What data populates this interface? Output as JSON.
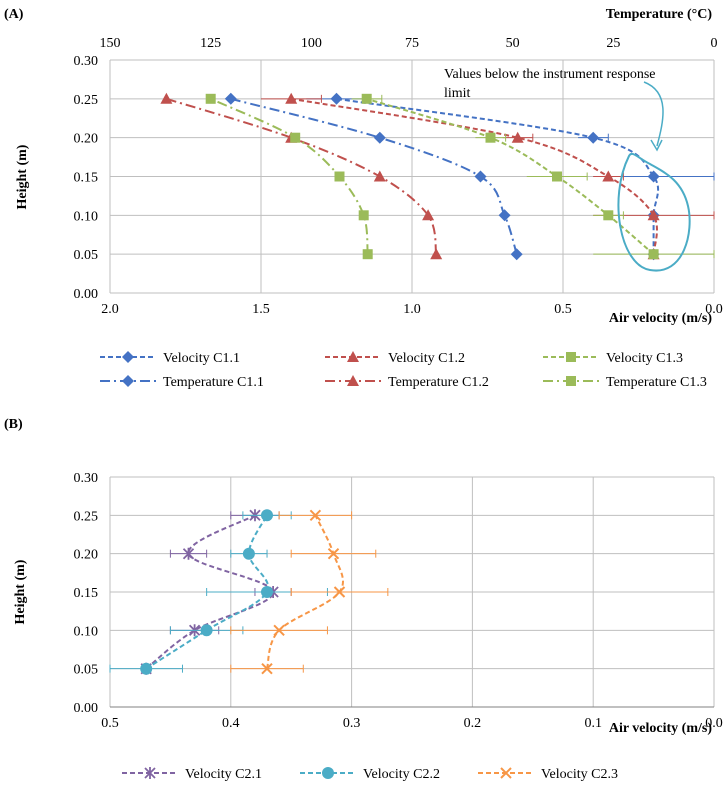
{
  "panels": {
    "a_label": "(A)",
    "b_label": "(B)"
  },
  "colors": {
    "blue": "#4472C4",
    "red": "#C0504D",
    "green": "#9BBB59",
    "purple": "#8064A2",
    "teal": "#4BACC6",
    "orange": "#F79646",
    "grid": "#BFBFBF",
    "annotation": "#4BACC6"
  },
  "chart_data": [
    {
      "id": "A",
      "type": "line",
      "title": "",
      "ylabel": "Height (m)",
      "xlabel_bottom": "Air velocity (m/s)",
      "xlabel_top": "Temperature (°C)",
      "ylim": [
        0,
        0.3
      ],
      "yticks": [
        0.0,
        0.05,
        0.1,
        0.15,
        0.2,
        0.25,
        0.3
      ],
      "ytick_labels": [
        "0.00",
        "0.05",
        "0.10",
        "0.15",
        "0.20",
        "0.25",
        "0.30"
      ],
      "x_bottom_lim": [
        2.0,
        0.0
      ],
      "x_bottom_ticks": [
        2.0,
        1.5,
        1.0,
        0.5,
        0.0
      ],
      "x_bottom_labels": [
        "2.0",
        "1.5",
        "1.0",
        "0.5",
        "0.0"
      ],
      "x_top_lim": [
        150,
        0
      ],
      "x_top_ticks": [
        150,
        125,
        100,
        75,
        50,
        25,
        0
      ],
      "x_top_labels": [
        "150",
        "125",
        "100",
        "75",
        "50",
        "25",
        "0"
      ],
      "annotation": "Values below the instrument response limit",
      "annotation_line1": "Values below the instrument response",
      "annotation_line2": "limit",
      "series": [
        {
          "name": "Velocity C1.1",
          "axis": "bottom",
          "color": "blue",
          "marker": "diamond",
          "dash": "dashed",
          "x": [
            0.2,
            0.2,
            0.2,
            0.4,
            1.25
          ],
          "y": [
            0.05,
            0.1,
            0.15,
            0.2,
            0.25
          ],
          "err": [
            null,
            null,
            0.2,
            0.05,
            0.1
          ]
        },
        {
          "name": "Velocity C1.2",
          "axis": "bottom",
          "color": "red",
          "marker": "triangle",
          "dash": "dashed",
          "x": [
            0.2,
            0.2,
            0.35,
            0.65,
            1.4
          ],
          "y": [
            0.05,
            0.1,
            0.15,
            0.2,
            0.25
          ],
          "err": [
            null,
            0.2,
            0.05,
            0.05,
            0.1
          ]
        },
        {
          "name": "Velocity C1.3",
          "axis": "bottom",
          "color": "green",
          "marker": "square",
          "dash": "dashed",
          "x": [
            0.2,
            0.35,
            0.52,
            0.74,
            1.15
          ],
          "y": [
            0.05,
            0.1,
            0.15,
            0.2,
            0.25
          ],
          "err": [
            0.2,
            0.05,
            0.1,
            0.05,
            0.05
          ]
        },
        {
          "name": "Temperature C1.1",
          "axis": "top",
          "color": "blue",
          "marker": "diamond",
          "dash": "dashdot",
          "x": [
            49,
            52,
            58,
            83,
            120
          ],
          "y": [
            0.05,
            0.1,
            0.15,
            0.2,
            0.25
          ]
        },
        {
          "name": "Temperature C1.2",
          "axis": "top",
          "color": "red",
          "marker": "triangle",
          "dash": "dashdot",
          "x": [
            69,
            71,
            83,
            105,
            136
          ],
          "y": [
            0.05,
            0.1,
            0.15,
            0.2,
            0.25
          ]
        },
        {
          "name": "Temperature C1.3",
          "axis": "top",
          "color": "green",
          "marker": "square",
          "dash": "dashdot",
          "x": [
            86,
            87,
            93,
            104,
            125
          ],
          "y": [
            0.05,
            0.1,
            0.15,
            0.2,
            0.25
          ]
        }
      ]
    },
    {
      "id": "B",
      "type": "line",
      "title": "",
      "ylabel": "Height (m)",
      "xlabel": "Air velocity (m/s)",
      "ylim": [
        0,
        0.3
      ],
      "yticks": [
        0.0,
        0.05,
        0.1,
        0.15,
        0.2,
        0.25,
        0.3
      ],
      "ytick_labels": [
        "0.00",
        "0.05",
        "0.10",
        "0.15",
        "0.20",
        "0.25",
        "0.30"
      ],
      "xlim": [
        0.5,
        0.0
      ],
      "xticks": [
        0.5,
        0.4,
        0.3,
        0.2,
        0.1,
        0.0
      ],
      "xtick_labels": [
        "0.5",
        "0.4",
        "0.3",
        "0.2",
        "0.1",
        "0.0"
      ],
      "series": [
        {
          "name": "Velocity C2.1",
          "color": "purple",
          "marker": "star",
          "dash": "dashed",
          "x": [
            0.47,
            0.43,
            0.365,
            0.435,
            0.38
          ],
          "y": [
            0.05,
            0.1,
            0.15,
            0.2,
            0.25
          ],
          "err": [
            null,
            0.02,
            0.015,
            0.015,
            0.02
          ]
        },
        {
          "name": "Velocity C2.2",
          "color": "teal",
          "marker": "circle",
          "dash": "dashed",
          "x": [
            0.47,
            0.42,
            0.37,
            0.385,
            0.37
          ],
          "y": [
            0.05,
            0.1,
            0.15,
            0.2,
            0.25
          ],
          "err": [
            0.03,
            0.03,
            0.05,
            0.015,
            0.02
          ]
        },
        {
          "name": "Velocity C2.3",
          "color": "orange",
          "marker": "cross",
          "dash": "dashed",
          "x": [
            0.37,
            0.36,
            0.31,
            0.315,
            0.33
          ],
          "y": [
            0.05,
            0.1,
            0.15,
            0.2,
            0.25
          ],
          "err": [
            0.03,
            0.04,
            0.04,
            0.035,
            0.03
          ]
        }
      ]
    }
  ]
}
